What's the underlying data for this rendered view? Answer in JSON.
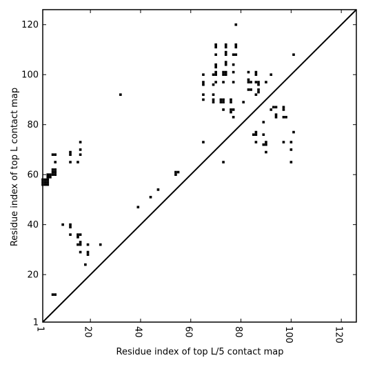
{
  "chart_data": {
    "type": "scatter",
    "xlabel": "Residue index of top L/5 contact map",
    "ylabel": "Residue index of top L contact map",
    "xlim": [
      1,
      126
    ],
    "ylim": [
      1,
      126
    ],
    "xticks": [
      1,
      20,
      40,
      60,
      80,
      100,
      120
    ],
    "yticks": [
      1,
      20,
      40,
      60,
      80,
      100,
      120
    ],
    "marker_color": "#000000",
    "diagonal_line": true,
    "points": [
      [
        1,
        56
      ],
      [
        1,
        57
      ],
      [
        2,
        56
      ],
      [
        2,
        57
      ],
      [
        3,
        56
      ],
      [
        3,
        57
      ],
      [
        2,
        58
      ],
      [
        3,
        58
      ],
      [
        1,
        58
      ],
      [
        3,
        59
      ],
      [
        3,
        60
      ],
      [
        4,
        59
      ],
      [
        4,
        60
      ],
      [
        5,
        60
      ],
      [
        5,
        61
      ],
      [
        5,
        62
      ],
      [
        6,
        60
      ],
      [
        6,
        61
      ],
      [
        6,
        62
      ],
      [
        6,
        65
      ],
      [
        5,
        68
      ],
      [
        6,
        68
      ],
      [
        5,
        12
      ],
      [
        6,
        12
      ],
      [
        9,
        40
      ],
      [
        12,
        65
      ],
      [
        12,
        68
      ],
      [
        12,
        69
      ],
      [
        12,
        40
      ],
      [
        12,
        39
      ],
      [
        12,
        36
      ],
      [
        15,
        65
      ],
      [
        15,
        36
      ],
      [
        15,
        35
      ],
      [
        15,
        32
      ],
      [
        16,
        73
      ],
      [
        16,
        70
      ],
      [
        16,
        68
      ],
      [
        16,
        36
      ],
      [
        16,
        33
      ],
      [
        16,
        32
      ],
      [
        16,
        29
      ],
      [
        18,
        24
      ],
      [
        19,
        32
      ],
      [
        19,
        29
      ],
      [
        19,
        28
      ],
      [
        24,
        32
      ],
      [
        32,
        92
      ],
      [
        39,
        47
      ],
      [
        44,
        51
      ],
      [
        47,
        54
      ],
      [
        54,
        60
      ],
      [
        54,
        61
      ],
      [
        55,
        61
      ],
      [
        65,
        100
      ],
      [
        65,
        97
      ],
      [
        65,
        96
      ],
      [
        65,
        92
      ],
      [
        65,
        90
      ],
      [
        65,
        73
      ],
      [
        69,
        100
      ],
      [
        69,
        96
      ],
      [
        69,
        92
      ],
      [
        69,
        90
      ],
      [
        69,
        89
      ],
      [
        70,
        112
      ],
      [
        70,
        111
      ],
      [
        70,
        108
      ],
      [
        70,
        104
      ],
      [
        70,
        103
      ],
      [
        70,
        101
      ],
      [
        70,
        100
      ],
      [
        70,
        97
      ],
      [
        72,
        90
      ],
      [
        72,
        89
      ],
      [
        73,
        101
      ],
      [
        73,
        100
      ],
      [
        73,
        97
      ],
      [
        73,
        90
      ],
      [
        73,
        89
      ],
      [
        73,
        86
      ],
      [
        73,
        65
      ],
      [
        74,
        112
      ],
      [
        74,
        111
      ],
      [
        74,
        109
      ],
      [
        74,
        108
      ],
      [
        74,
        105
      ],
      [
        74,
        104
      ],
      [
        74,
        101
      ],
      [
        74,
        100
      ],
      [
        76,
        90
      ],
      [
        76,
        89
      ],
      [
        76,
        86
      ],
      [
        76,
        85
      ],
      [
        77,
        104
      ],
      [
        77,
        101
      ],
      [
        77,
        97
      ],
      [
        77,
        86
      ],
      [
        77,
        83
      ],
      [
        78,
        120
      ],
      [
        78,
        112
      ],
      [
        78,
        111
      ],
      [
        78,
        108
      ],
      [
        77,
        108
      ],
      [
        81,
        89
      ],
      [
        83,
        101
      ],
      [
        83,
        98
      ],
      [
        83,
        97
      ],
      [
        83,
        94
      ],
      [
        84,
        97
      ],
      [
        84,
        94
      ],
      [
        85,
        76
      ],
      [
        86,
        101
      ],
      [
        86,
        100
      ],
      [
        86,
        97
      ],
      [
        86,
        92
      ],
      [
        86,
        77
      ],
      [
        86,
        76
      ],
      [
        86,
        73
      ],
      [
        87,
        97
      ],
      [
        87,
        96
      ],
      [
        87,
        94
      ],
      [
        87,
        93
      ],
      [
        89,
        81
      ],
      [
        89,
        76
      ],
      [
        89,
        72
      ],
      [
        90,
        97
      ],
      [
        90,
        73
      ],
      [
        90,
        72
      ],
      [
        90,
        69
      ],
      [
        92,
        100
      ],
      [
        92,
        86
      ],
      [
        93,
        87
      ],
      [
        94,
        87
      ],
      [
        94,
        84
      ],
      [
        94,
        83
      ],
      [
        97,
        87
      ],
      [
        97,
        86
      ],
      [
        97,
        83
      ],
      [
        97,
        73
      ],
      [
        98,
        83
      ],
      [
        100,
        73
      ],
      [
        100,
        70
      ],
      [
        100,
        65
      ],
      [
        101,
        108
      ],
      [
        101,
        77
      ]
    ]
  }
}
